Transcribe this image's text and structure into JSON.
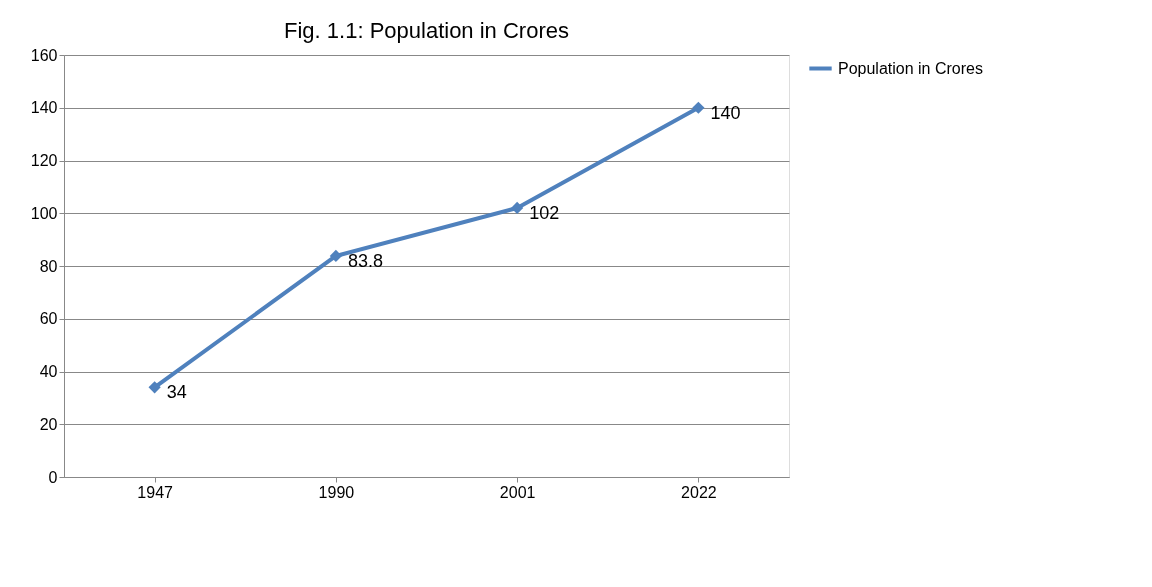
{
  "chart_data": {
    "type": "line",
    "title": "Fig. 1.1: Population in Crores",
    "categories": [
      "1947",
      "1990",
      "2001",
      "2022"
    ],
    "series": [
      {
        "name": "Population in Crores",
        "color": "#4f81bd",
        "values": [
          34,
          83.8,
          102,
          140
        ]
      }
    ],
    "ylim": [
      0,
      160
    ],
    "yticks": [
      0,
      20,
      40,
      60,
      80,
      100,
      120,
      140,
      160
    ],
    "grid": "y",
    "legend": "right",
    "marker": "diamond",
    "line_style": "solid",
    "data_labels": true
  }
}
